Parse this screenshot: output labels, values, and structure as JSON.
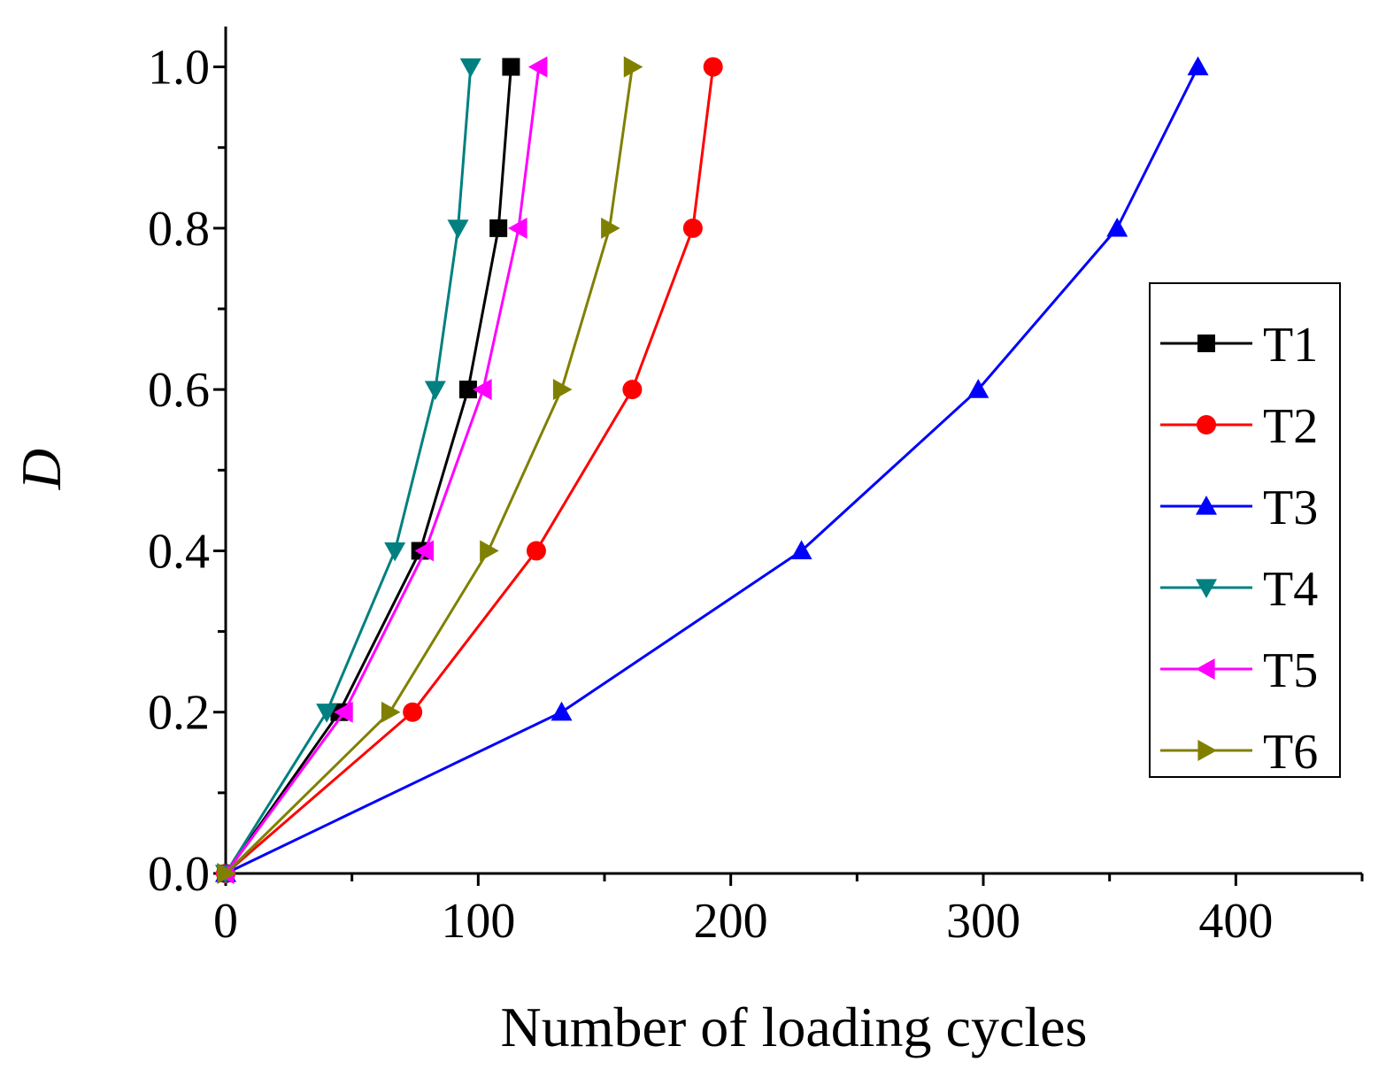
{
  "chart_data": {
    "type": "line",
    "title": "",
    "xlabel": "Number of loading cycles",
    "ylabel": "D",
    "xlim": [
      0,
      450
    ],
    "ylim": [
      0,
      1.05
    ],
    "x_ticks": [
      "0",
      "100",
      "200",
      "300",
      "400"
    ],
    "y_ticks": [
      "0.0",
      "0.2",
      "0.4",
      "0.6",
      "0.8",
      "1.0"
    ],
    "grid": false,
    "legend_position": "right",
    "series": [
      {
        "name": "T1",
        "color": "#000000",
        "marker": "square",
        "x": [
          0,
          45,
          77,
          96,
          108,
          113
        ],
        "y": [
          0,
          0.2,
          0.4,
          0.6,
          0.8,
          1.0
        ]
      },
      {
        "name": "T2",
        "color": "#ff0000",
        "marker": "circle",
        "x": [
          0,
          74,
          123,
          161,
          185,
          193
        ],
        "y": [
          0,
          0.2,
          0.4,
          0.6,
          0.8,
          1.0
        ]
      },
      {
        "name": "T3",
        "color": "#0000ff",
        "marker": "triangle-up",
        "x": [
          0,
          133,
          228,
          298,
          353,
          385
        ],
        "y": [
          0,
          0.2,
          0.4,
          0.6,
          0.8,
          1.0
        ]
      },
      {
        "name": "T4",
        "color": "#008080",
        "marker": "triangle-down",
        "x": [
          0,
          40,
          67,
          83,
          92,
          97
        ],
        "y": [
          0,
          0.2,
          0.4,
          0.6,
          0.8,
          1.0
        ]
      },
      {
        "name": "T5",
        "color": "#ff00ff",
        "marker": "triangle-left",
        "x": [
          0,
          47,
          79,
          102,
          116,
          124
        ],
        "y": [
          0,
          0.2,
          0.4,
          0.6,
          0.8,
          1.0
        ]
      },
      {
        "name": "T6",
        "color": "#808000",
        "marker": "triangle-right",
        "x": [
          0,
          65,
          104,
          133,
          152,
          161
        ],
        "y": [
          0,
          0.2,
          0.4,
          0.6,
          0.8,
          1.0
        ]
      }
    ]
  }
}
